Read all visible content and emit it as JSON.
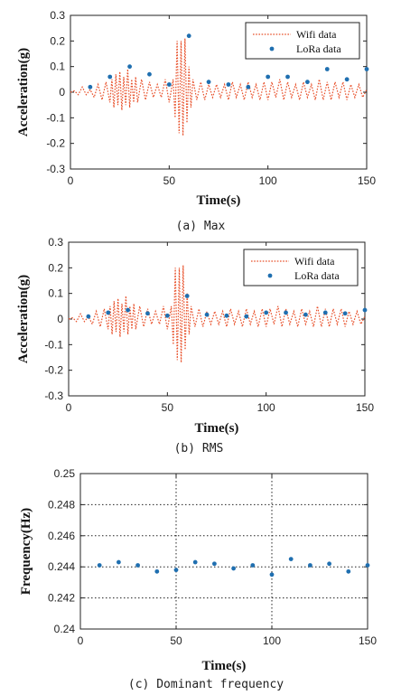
{
  "chart_data": [
    {
      "type": "line",
      "caption": "(a)  Max",
      "xlabel": "Time(s)",
      "ylabel": "Acceleration(g)",
      "xlim": [
        0,
        150
      ],
      "ylim": [
        -0.3,
        0.3
      ],
      "xticks": [
        "0",
        "50",
        "100",
        "150"
      ],
      "yticks": [
        "0.3",
        "0.2",
        "0.1",
        "0",
        "-0.1",
        "-0.2",
        "-0.3"
      ],
      "grid": false,
      "legend_position": "top-right",
      "series": [
        {
          "name": "Wifi data",
          "style": "dotted-line",
          "color": "#e8502a",
          "x": [
            0,
            2,
            4,
            6,
            8,
            10,
            12,
            14,
            16,
            18,
            20,
            21,
            22,
            23,
            24,
            25,
            26,
            27,
            28,
            29,
            30,
            31,
            32,
            33,
            34,
            36,
            38,
            40,
            42,
            44,
            46,
            48,
            50,
            52,
            53,
            54,
            55,
            56,
            57,
            58,
            59,
            60,
            61,
            62,
            64,
            66,
            68,
            70,
            72,
            74,
            76,
            78,
            80,
            82,
            84,
            86,
            88,
            90,
            92,
            94,
            96,
            98,
            100,
            102,
            104,
            106,
            108,
            110,
            112,
            114,
            116,
            118,
            120,
            122,
            124,
            126,
            128,
            130,
            132,
            134,
            136,
            138,
            140,
            142,
            144,
            146,
            148,
            150
          ],
          "values": [
            0,
            0.005,
            -0.01,
            0.02,
            -0.01,
            0.01,
            -0.02,
            0.03,
            -0.03,
            0.04,
            -0.04,
            0.05,
            -0.06,
            0.07,
            -0.05,
            0.08,
            -0.07,
            0.06,
            -0.05,
            0.09,
            -0.06,
            0.05,
            -0.04,
            0.06,
            -0.04,
            0.05,
            -0.03,
            0.04,
            -0.02,
            0.03,
            -0.02,
            0.05,
            -0.04,
            0.05,
            -0.1,
            0.2,
            -0.16,
            0.2,
            -0.17,
            0.21,
            -0.12,
            0.1,
            -0.06,
            0.05,
            -0.03,
            0.04,
            -0.03,
            0.03,
            -0.02,
            0.03,
            -0.02,
            0.03,
            -0.03,
            0.04,
            -0.02,
            0.03,
            -0.03,
            0.04,
            -0.02,
            0.03,
            -0.03,
            0.04,
            -0.03,
            0.04,
            -0.02,
            0.05,
            -0.03,
            0.04,
            -0.02,
            0.03,
            -0.03,
            0.04,
            -0.02,
            0.03,
            -0.03,
            0.05,
            -0.03,
            0.04,
            -0.03,
            0.04,
            -0.02,
            0.04,
            -0.03,
            0.03,
            -0.02,
            0.03,
            -0.02,
            0.01
          ]
        },
        {
          "name": "LoRa data",
          "style": "points",
          "color": "#1f6fb0",
          "x": [
            10,
            20,
            30,
            40,
            50,
            60,
            70,
            80,
            90,
            100,
            110,
            120,
            130,
            140,
            150
          ],
          "values": [
            0.02,
            0.06,
            0.1,
            0.07,
            0.03,
            0.22,
            0.04,
            0.03,
            0.02,
            0.06,
            0.06,
            0.04,
            0.09,
            0.05,
            0.09
          ]
        }
      ]
    },
    {
      "type": "line",
      "caption": "(b)  RMS",
      "xlabel": "Time(s)",
      "ylabel": "Acceleration(g)",
      "xlim": [
        0,
        150
      ],
      "ylim": [
        -0.3,
        0.3
      ],
      "xticks": [
        "0",
        "50",
        "100",
        "150"
      ],
      "yticks": [
        "0.3",
        "0.2",
        "0.1",
        "0",
        "-0.1",
        "-0.2",
        "-0.3"
      ],
      "grid": false,
      "legend_position": "top-right",
      "series": [
        {
          "name": "Wifi data",
          "style": "dotted-line",
          "color": "#e8502a",
          "x": [
            0,
            2,
            4,
            6,
            8,
            10,
            12,
            14,
            16,
            18,
            20,
            21,
            22,
            23,
            24,
            25,
            26,
            27,
            28,
            29,
            30,
            31,
            32,
            33,
            34,
            36,
            38,
            40,
            42,
            44,
            46,
            48,
            50,
            52,
            53,
            54,
            55,
            56,
            57,
            58,
            59,
            60,
            61,
            62,
            64,
            66,
            68,
            70,
            72,
            74,
            76,
            78,
            80,
            82,
            84,
            86,
            88,
            90,
            92,
            94,
            96,
            98,
            100,
            102,
            104,
            106,
            108,
            110,
            112,
            114,
            116,
            118,
            120,
            122,
            124,
            126,
            128,
            130,
            132,
            134,
            136,
            138,
            140,
            142,
            144,
            146,
            148,
            150
          ],
          "values": [
            0,
            0.005,
            -0.01,
            0.02,
            -0.01,
            0.01,
            -0.02,
            0.03,
            -0.03,
            0.04,
            -0.04,
            0.05,
            -0.06,
            0.07,
            -0.05,
            0.08,
            -0.07,
            0.06,
            -0.05,
            0.09,
            -0.06,
            0.05,
            -0.04,
            0.06,
            -0.04,
            0.05,
            -0.03,
            0.04,
            -0.02,
            0.03,
            -0.02,
            0.05,
            -0.04,
            0.05,
            -0.1,
            0.2,
            -0.16,
            0.2,
            -0.17,
            0.21,
            -0.12,
            0.1,
            -0.06,
            0.05,
            -0.03,
            0.04,
            -0.03,
            0.03,
            -0.02,
            0.03,
            -0.02,
            0.03,
            -0.03,
            0.04,
            -0.02,
            0.03,
            -0.03,
            0.04,
            -0.02,
            0.03,
            -0.03,
            0.04,
            -0.03,
            0.04,
            -0.02,
            0.05,
            -0.03,
            0.04,
            -0.02,
            0.03,
            -0.03,
            0.04,
            -0.02,
            0.03,
            -0.03,
            0.05,
            -0.03,
            0.04,
            -0.03,
            0.04,
            -0.02,
            0.04,
            -0.03,
            0.03,
            -0.02,
            0.03,
            -0.02,
            0.01
          ]
        },
        {
          "name": "LoRa data",
          "style": "points",
          "color": "#1f6fb0",
          "x": [
            10,
            20,
            30,
            40,
            50,
            60,
            70,
            80,
            90,
            100,
            110,
            120,
            130,
            140,
            150
          ],
          "values": [
            0.01,
            0.025,
            0.035,
            0.022,
            0.013,
            0.09,
            0.017,
            0.013,
            0.01,
            0.025,
            0.025,
            0.017,
            0.025,
            0.022,
            0.035
          ]
        }
      ]
    },
    {
      "type": "scatter",
      "caption": "(c)  Dominant  frequency",
      "xlabel": "Time(s)",
      "ylabel": "Frequency(Hz)",
      "xlim": [
        0,
        150
      ],
      "ylim": [
        0.24,
        0.25
      ],
      "xticks": [
        "0",
        "50",
        "100",
        "150"
      ],
      "yticks": [
        "0.25",
        "0.248",
        "0.246",
        "0.244",
        "0.242",
        "0.24"
      ],
      "grid": true,
      "series": [
        {
          "style": "points",
          "color": "#1f6fb0",
          "x": [
            10,
            20,
            30,
            40,
            50,
            60,
            70,
            80,
            90,
            100,
            110,
            120,
            130,
            140,
            150
          ],
          "values": [
            0.2441,
            0.2443,
            0.2441,
            0.2437,
            0.2438,
            0.2443,
            0.2442,
            0.2439,
            0.2441,
            0.2435,
            0.2445,
            0.2441,
            0.2442,
            0.2437,
            0.2441
          ]
        }
      ]
    }
  ]
}
